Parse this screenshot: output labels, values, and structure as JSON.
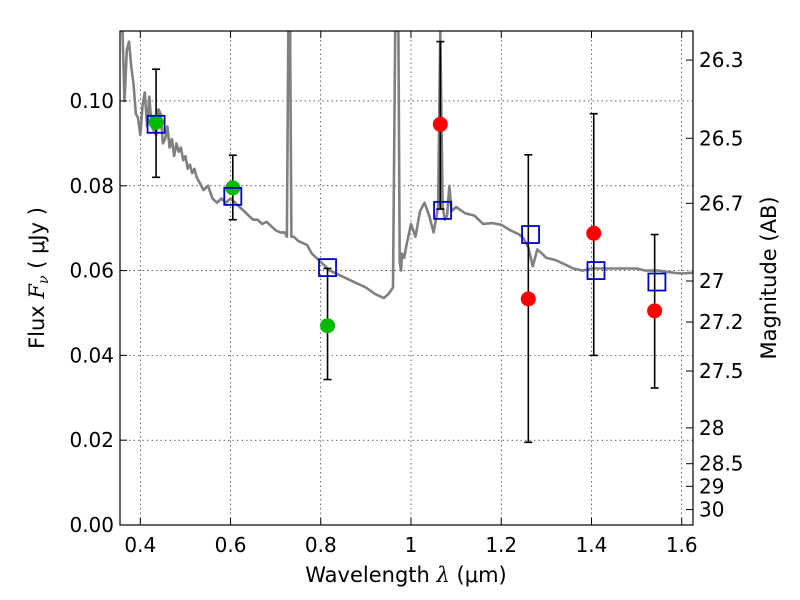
{
  "chart_data": {
    "type": "scatter",
    "xlabel_prefix": "Wavelength",
    "xlabel_symbol": "λ",
    "xlabel_unit": "(μm)",
    "ylabel_prefix": "Flux",
    "ylabel_symbol": "F",
    "ylabel_subscript": "ν",
    "ylabel_unit": "( μJy )",
    "y2label": "Magnitude (AB)",
    "xlim": [
      0.355,
      1.625
    ],
    "ylim": [
      0.0,
      0.1165
    ],
    "x_ticks": [
      0.4,
      0.6,
      0.8,
      1.0,
      1.2,
      1.4,
      1.6
    ],
    "x_tick_labels": [
      "0.4",
      "0.6",
      "0.8",
      "1",
      "1.2",
      "1.4",
      "1.6"
    ],
    "y_ticks": [
      0.0,
      0.02,
      0.04,
      0.06,
      0.08,
      0.1
    ],
    "y_tick_labels": [
      "0.00",
      "0.02",
      "0.04",
      "0.06",
      "0.08",
      "0.10"
    ],
    "mag_ticks": [
      26.3,
      26.5,
      26.7,
      27.0,
      27.2,
      27.5,
      28.0,
      28.5,
      29.0,
      30.0
    ],
    "mag_tick_labels": [
      "26.3",
      "26.5",
      "26.7",
      "27",
      "27.2",
      "27.5",
      "28",
      "28.5",
      "29",
      "30"
    ],
    "grid": true,
    "colors": {
      "model": "#808080",
      "model_photometry": "#0000cc",
      "optical_points": "#00bb00",
      "nir_points": "#ff0000",
      "error_bars": "#000000"
    },
    "series": [
      {
        "name": "model_spectrum",
        "kind": "line",
        "x": [
          0.355,
          0.36,
          0.365,
          0.37,
          0.375,
          0.38,
          0.385,
          0.39,
          0.395,
          0.4,
          0.405,
          0.41,
          0.415,
          0.42,
          0.425,
          0.43,
          0.435,
          0.44,
          0.445,
          0.45,
          0.455,
          0.46,
          0.465,
          0.47,
          0.475,
          0.48,
          0.485,
          0.49,
          0.495,
          0.5,
          0.505,
          0.51,
          0.515,
          0.52,
          0.525,
          0.53,
          0.54,
          0.55,
          0.56,
          0.57,
          0.58,
          0.59,
          0.6,
          0.61,
          0.62,
          0.63,
          0.64,
          0.65,
          0.66,
          0.67,
          0.68,
          0.69,
          0.7,
          0.71,
          0.72,
          0.725,
          0.728,
          0.73,
          0.732,
          0.735,
          0.74,
          0.75,
          0.76,
          0.77,
          0.78,
          0.8,
          0.82,
          0.84,
          0.86,
          0.88,
          0.9,
          0.92,
          0.94,
          0.95,
          0.96,
          0.965,
          0.968,
          0.97,
          0.972,
          0.975,
          0.978,
          0.98,
          0.985,
          0.99,
          1.0,
          1.01,
          1.02,
          1.03,
          1.04,
          1.05,
          1.06,
          1.065,
          1.07,
          1.075,
          1.08,
          1.085,
          1.09,
          1.1,
          1.12,
          1.14,
          1.16,
          1.18,
          1.2,
          1.22,
          1.24,
          1.25,
          1.26,
          1.27,
          1.28,
          1.29,
          1.3,
          1.32,
          1.34,
          1.36,
          1.38,
          1.4,
          1.42,
          1.45,
          1.48,
          1.5,
          1.52,
          1.55,
          1.58,
          1.6,
          1.625
        ],
        "y": [
          0.12,
          0.118,
          0.1,
          0.112,
          0.114,
          0.108,
          0.104,
          0.097,
          0.096,
          0.092,
          0.099,
          0.102,
          0.094,
          0.101,
          0.094,
          0.093,
          0.092,
          0.098,
          0.097,
          0.09,
          0.091,
          0.094,
          0.089,
          0.091,
          0.087,
          0.09,
          0.088,
          0.089,
          0.086,
          0.087,
          0.084,
          0.085,
          0.083,
          0.084,
          0.082,
          0.081,
          0.079,
          0.08,
          0.077,
          0.076,
          0.077,
          0.076,
          0.077,
          0.076,
          0.075,
          0.074,
          0.073,
          0.072,
          0.072,
          0.071,
          0.0715,
          0.0705,
          0.0695,
          0.069,
          0.069,
          0.068,
          0.1165,
          0.1165,
          0.1165,
          0.068,
          0.068,
          0.067,
          0.0665,
          0.066,
          0.064,
          0.062,
          0.06,
          0.059,
          0.058,
          0.057,
          0.056,
          0.0545,
          0.0535,
          0.0545,
          0.056,
          0.1165,
          0.1165,
          0.1165,
          0.1165,
          0.062,
          0.06,
          0.064,
          0.063,
          0.066,
          0.071,
          0.068,
          0.074,
          0.076,
          0.073,
          0.069,
          0.075,
          0.1165,
          0.075,
          0.072,
          0.073,
          0.08,
          0.074,
          0.075,
          0.0735,
          0.073,
          0.071,
          0.0712,
          0.0708,
          0.0695,
          0.0685,
          0.0675,
          0.0655,
          0.061,
          0.065,
          0.064,
          0.063,
          0.0625,
          0.0615,
          0.0605,
          0.06,
          0.0605,
          0.0605,
          0.0605,
          0.0605,
          0.0605,
          0.06,
          0.06,
          0.0595,
          0.0593,
          0.0595
        ]
      },
      {
        "name": "model_photometry",
        "kind": "open_square",
        "x": [
          0.435,
          0.605,
          0.815,
          1.07,
          1.265,
          1.41,
          1.545
        ],
        "y": [
          0.0945,
          0.0775,
          0.0607,
          0.0742,
          0.0685,
          0.06,
          0.0573
        ]
      },
      {
        "name": "optical_detections",
        "kind": "filled_circle",
        "x": [
          0.435,
          0.605,
          0.815
        ],
        "y": [
          0.095,
          0.0795,
          0.047
        ]
      },
      {
        "name": "nir_detections",
        "kind": "filled_circle",
        "x": [
          1.065,
          1.26,
          1.405,
          1.54
        ],
        "y": [
          0.0945,
          0.0533,
          0.0688,
          0.0505
        ]
      },
      {
        "name": "error_bars",
        "kind": "errorbar",
        "x": [
          0.435,
          0.605,
          0.815,
          1.065,
          1.26,
          1.405,
          1.54
        ],
        "low": [
          0.082,
          0.072,
          0.0343,
          0.0745,
          0.0195,
          0.04,
          0.0323
        ],
        "high": [
          0.1075,
          0.0872,
          0.0605,
          0.114,
          0.0873,
          0.097,
          0.0685
        ]
      }
    ]
  }
}
